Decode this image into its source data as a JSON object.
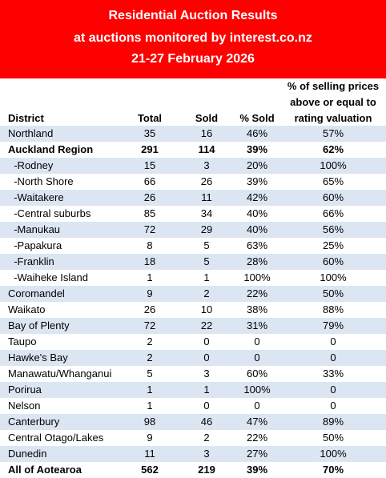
{
  "banner": {
    "line1": "Residential Auction Results",
    "line2": "at auctions monitored by interest.co.nz",
    "line3": "21-27 February 2026"
  },
  "columns": {
    "district": "District",
    "total": "Total",
    "sold": "Sold",
    "pct_sold": "% Sold",
    "valuation_line1": "% of selling prices",
    "valuation_line2": "above or  equal to",
    "valuation_line3": "rating valuation"
  },
  "rows": [
    {
      "district": "Northland",
      "total": "35",
      "sold": "16",
      "pct_sold": "46%",
      "valuation": "57%",
      "bold": false
    },
    {
      "district": "Auckland Region",
      "total": "291",
      "sold": "114",
      "pct_sold": "39%",
      "valuation": "62%",
      "bold": true
    },
    {
      "district": "  -Rodney",
      "total": "15",
      "sold": "3",
      "pct_sold": "20%",
      "valuation": "100%",
      "bold": false
    },
    {
      "district": "  -North Shore",
      "total": "66",
      "sold": "26",
      "pct_sold": "39%",
      "valuation": "65%",
      "bold": false
    },
    {
      "district": "  -Waitakere",
      "total": "26",
      "sold": "11",
      "pct_sold": "42%",
      "valuation": "60%",
      "bold": false
    },
    {
      "district": "  -Central suburbs",
      "total": "85",
      "sold": "34",
      "pct_sold": "40%",
      "valuation": "66%",
      "bold": false
    },
    {
      "district": "  -Manukau",
      "total": "72",
      "sold": "29",
      "pct_sold": "40%",
      "valuation": "56%",
      "bold": false
    },
    {
      "district": "  -Papakura",
      "total": "8",
      "sold": "5",
      "pct_sold": "63%",
      "valuation": "25%",
      "bold": false
    },
    {
      "district": "  -Franklin",
      "total": "18",
      "sold": "5",
      "pct_sold": "28%",
      "valuation": "60%",
      "bold": false
    },
    {
      "district": "  -Waiheke Island",
      "total": "1",
      "sold": "1",
      "pct_sold": "100%",
      "valuation": "100%",
      "bold": false
    },
    {
      "district": "Coromandel",
      "total": "9",
      "sold": "2",
      "pct_sold": "22%",
      "valuation": "50%",
      "bold": false
    },
    {
      "district": "Waikato",
      "total": "26",
      "sold": "10",
      "pct_sold": "38%",
      "valuation": "88%",
      "bold": false
    },
    {
      "district": "Bay of Plenty",
      "total": "72",
      "sold": "22",
      "pct_sold": "31%",
      "valuation": "79%",
      "bold": false
    },
    {
      "district": "Taupo",
      "total": "2",
      "sold": "0",
      "pct_sold": "0",
      "valuation": "0",
      "bold": false
    },
    {
      "district": "Hawke's Bay",
      "total": "2",
      "sold": "0",
      "pct_sold": "0",
      "valuation": "0",
      "bold": false
    },
    {
      "district": "Manawatu/Whanganui",
      "total": "5",
      "sold": "3",
      "pct_sold": "60%",
      "valuation": "33%",
      "bold": false
    },
    {
      "district": "Porirua",
      "total": "1",
      "sold": "1",
      "pct_sold": "100%",
      "valuation": "0",
      "bold": false
    },
    {
      "district": "Nelson",
      "total": "1",
      "sold": "0",
      "pct_sold": "0",
      "valuation": "0",
      "bold": false
    },
    {
      "district": "Canterbury",
      "total": "98",
      "sold": "46",
      "pct_sold": "47%",
      "valuation": "89%",
      "bold": false
    },
    {
      "district": "Central Otago/Lakes",
      "total": "9",
      "sold": "2",
      "pct_sold": "22%",
      "valuation": "50%",
      "bold": false
    },
    {
      "district": "Dunedin",
      "total": "11",
      "sold": "3",
      "pct_sold": "27%",
      "valuation": "100%",
      "bold": false
    },
    {
      "district": "All of Aotearoa",
      "total": "562",
      "sold": "219",
      "pct_sold": "39%",
      "valuation": "70%",
      "bold": true
    }
  ]
}
